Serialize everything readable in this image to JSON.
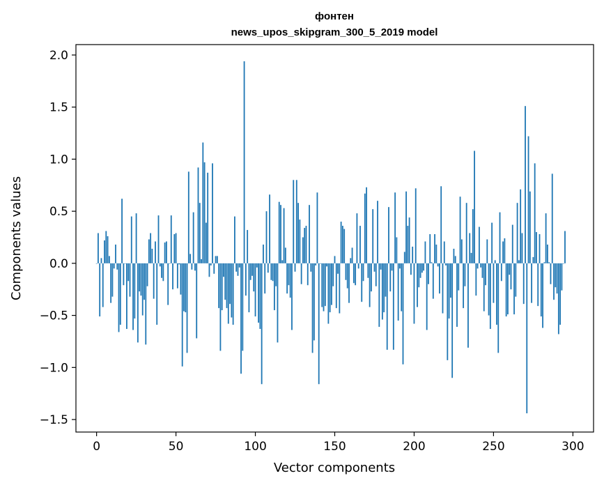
{
  "chart_data": {
    "type": "bar",
    "title": "фонтен",
    "subtitle": "news_upos_skipgram_300_5_2019 model",
    "xlabel": "Vector components",
    "ylabel": "Components values",
    "xlim": [
      -13,
      313
    ],
    "ylim": [
      -1.62,
      2.1
    ],
    "x_ticks": [
      0,
      50,
      100,
      150,
      200,
      250,
      300
    ],
    "y_ticks": [
      -1.5,
      -1.0,
      -0.5,
      0.0,
      0.5,
      1.0,
      1.5,
      2.0
    ],
    "x_tick_labels": [
      "0",
      "50",
      "100",
      "150",
      "200",
      "250",
      "300"
    ],
    "y_tick_labels": [
      "−1.5",
      "−1.0",
      "−0.5",
      "0.0",
      "0.5",
      "1.0",
      "1.5",
      "2.0"
    ],
    "grid": false,
    "bar_color": "#1f77b4",
    "values": [
      0.0,
      0.29,
      -0.51,
      0.05,
      -0.42,
      0.22,
      0.31,
      0.26,
      0.07,
      -0.38,
      -0.32,
      -0.05,
      0.18,
      -0.06,
      -0.66,
      -0.59,
      0.62,
      -0.21,
      0.0,
      -0.63,
      -0.17,
      -0.32,
      0.45,
      -0.64,
      -0.53,
      0.48,
      -0.76,
      -0.27,
      -0.31,
      -0.5,
      -0.35,
      -0.78,
      -0.22,
      0.23,
      0.29,
      0.14,
      -0.34,
      0.21,
      -0.59,
      0.46,
      -0.03,
      -0.14,
      -0.17,
      0.2,
      0.21,
      -0.4,
      0.0,
      0.46,
      -0.25,
      0.28,
      0.29,
      -0.24,
      -0.01,
      -0.3,
      -0.99,
      -0.46,
      -0.47,
      -0.86,
      0.88,
      0.09,
      -0.06,
      0.49,
      -0.07,
      -0.72,
      0.92,
      0.58,
      0.04,
      1.16,
      0.97,
      0.39,
      0.87,
      -0.13,
      -0.02,
      0.96,
      -0.1,
      0.07,
      0.07,
      -0.43,
      -0.84,
      -0.45,
      -0.13,
      -0.35,
      -0.43,
      -0.58,
      -0.39,
      -0.52,
      -0.59,
      0.45,
      -0.08,
      -0.12,
      -0.04,
      -1.06,
      -0.84,
      1.94,
      -0.31,
      0.32,
      -0.47,
      -0.16,
      -0.12,
      -0.27,
      -0.51,
      -0.04,
      -0.57,
      -0.63,
      -1.16,
      0.18,
      -0.29,
      0.5,
      -0.09,
      0.66,
      -0.16,
      -0.17,
      -0.45,
      -0.22,
      -0.76,
      0.59,
      0.56,
      0.03,
      0.53,
      0.15,
      -0.29,
      -0.21,
      -0.33,
      -0.64,
      0.8,
      -0.08,
      0.8,
      0.58,
      0.42,
      -0.2,
      0.25,
      0.34,
      0.36,
      -0.21,
      0.56,
      -0.08,
      -0.86,
      -0.74,
      -0.02,
      0.68,
      -1.16,
      0.0,
      -0.42,
      -0.46,
      -0.41,
      -0.03,
      -0.58,
      -0.47,
      -0.4,
      -0.22,
      0.07,
      -0.43,
      -0.1,
      -0.48,
      0.4,
      0.36,
      0.33,
      -0.16,
      -0.24,
      -0.38,
      0.05,
      0.15,
      -0.19,
      -0.21,
      0.48,
      -0.05,
      0.36,
      -0.37,
      -0.17,
      0.67,
      0.73,
      -0.14,
      -0.42,
      -0.27,
      0.52,
      -0.08,
      -0.22,
      0.6,
      -0.61,
      -0.06,
      -0.54,
      -0.47,
      -0.32,
      -0.83,
      0.54,
      -0.27,
      -0.07,
      -0.83,
      0.68,
      0.25,
      -0.55,
      -0.05,
      -0.46,
      -0.97,
      0.11,
      0.69,
      0.36,
      0.44,
      -0.11,
      0.16,
      -0.58,
      0.72,
      -0.42,
      -0.23,
      -0.14,
      -0.09,
      -0.07,
      0.21,
      -0.64,
      -0.2,
      0.28,
      0.01,
      -0.34,
      0.28,
      0.18,
      -0.03,
      -0.29,
      0.74,
      -0.48,
      0.21,
      -0.02,
      -0.93,
      -0.53,
      -0.33,
      -1.1,
      0.14,
      0.07,
      -0.61,
      -0.26,
      0.64,
      0.23,
      -0.43,
      -0.22,
      0.58,
      -0.81,
      0.29,
      0.1,
      0.52,
      1.08,
      -0.31,
      -0.05,
      0.35,
      -0.04,
      -0.14,
      -0.46,
      -0.21,
      0.23,
      -0.5,
      -0.63,
      0.39,
      -0.38,
      0.03,
      -0.59,
      -0.86,
      0.49,
      -0.17,
      0.21,
      0.24,
      -0.51,
      -0.49,
      -0.11,
      -0.25,
      0.37,
      -0.49,
      -0.32,
      0.58,
      0.03,
      0.71,
      0.29,
      -0.39,
      1.51,
      -1.44,
      1.22,
      0.69,
      -0.38,
      0.06,
      0.96,
      0.3,
      -0.41,
      0.28,
      -0.51,
      -0.62,
      0.01,
      0.48,
      0.18,
      0.01,
      -0.2,
      0.86,
      -0.35,
      -0.23,
      -0.29,
      -0.68,
      -0.59,
      -0.26,
      0.0,
      0.31
    ]
  }
}
